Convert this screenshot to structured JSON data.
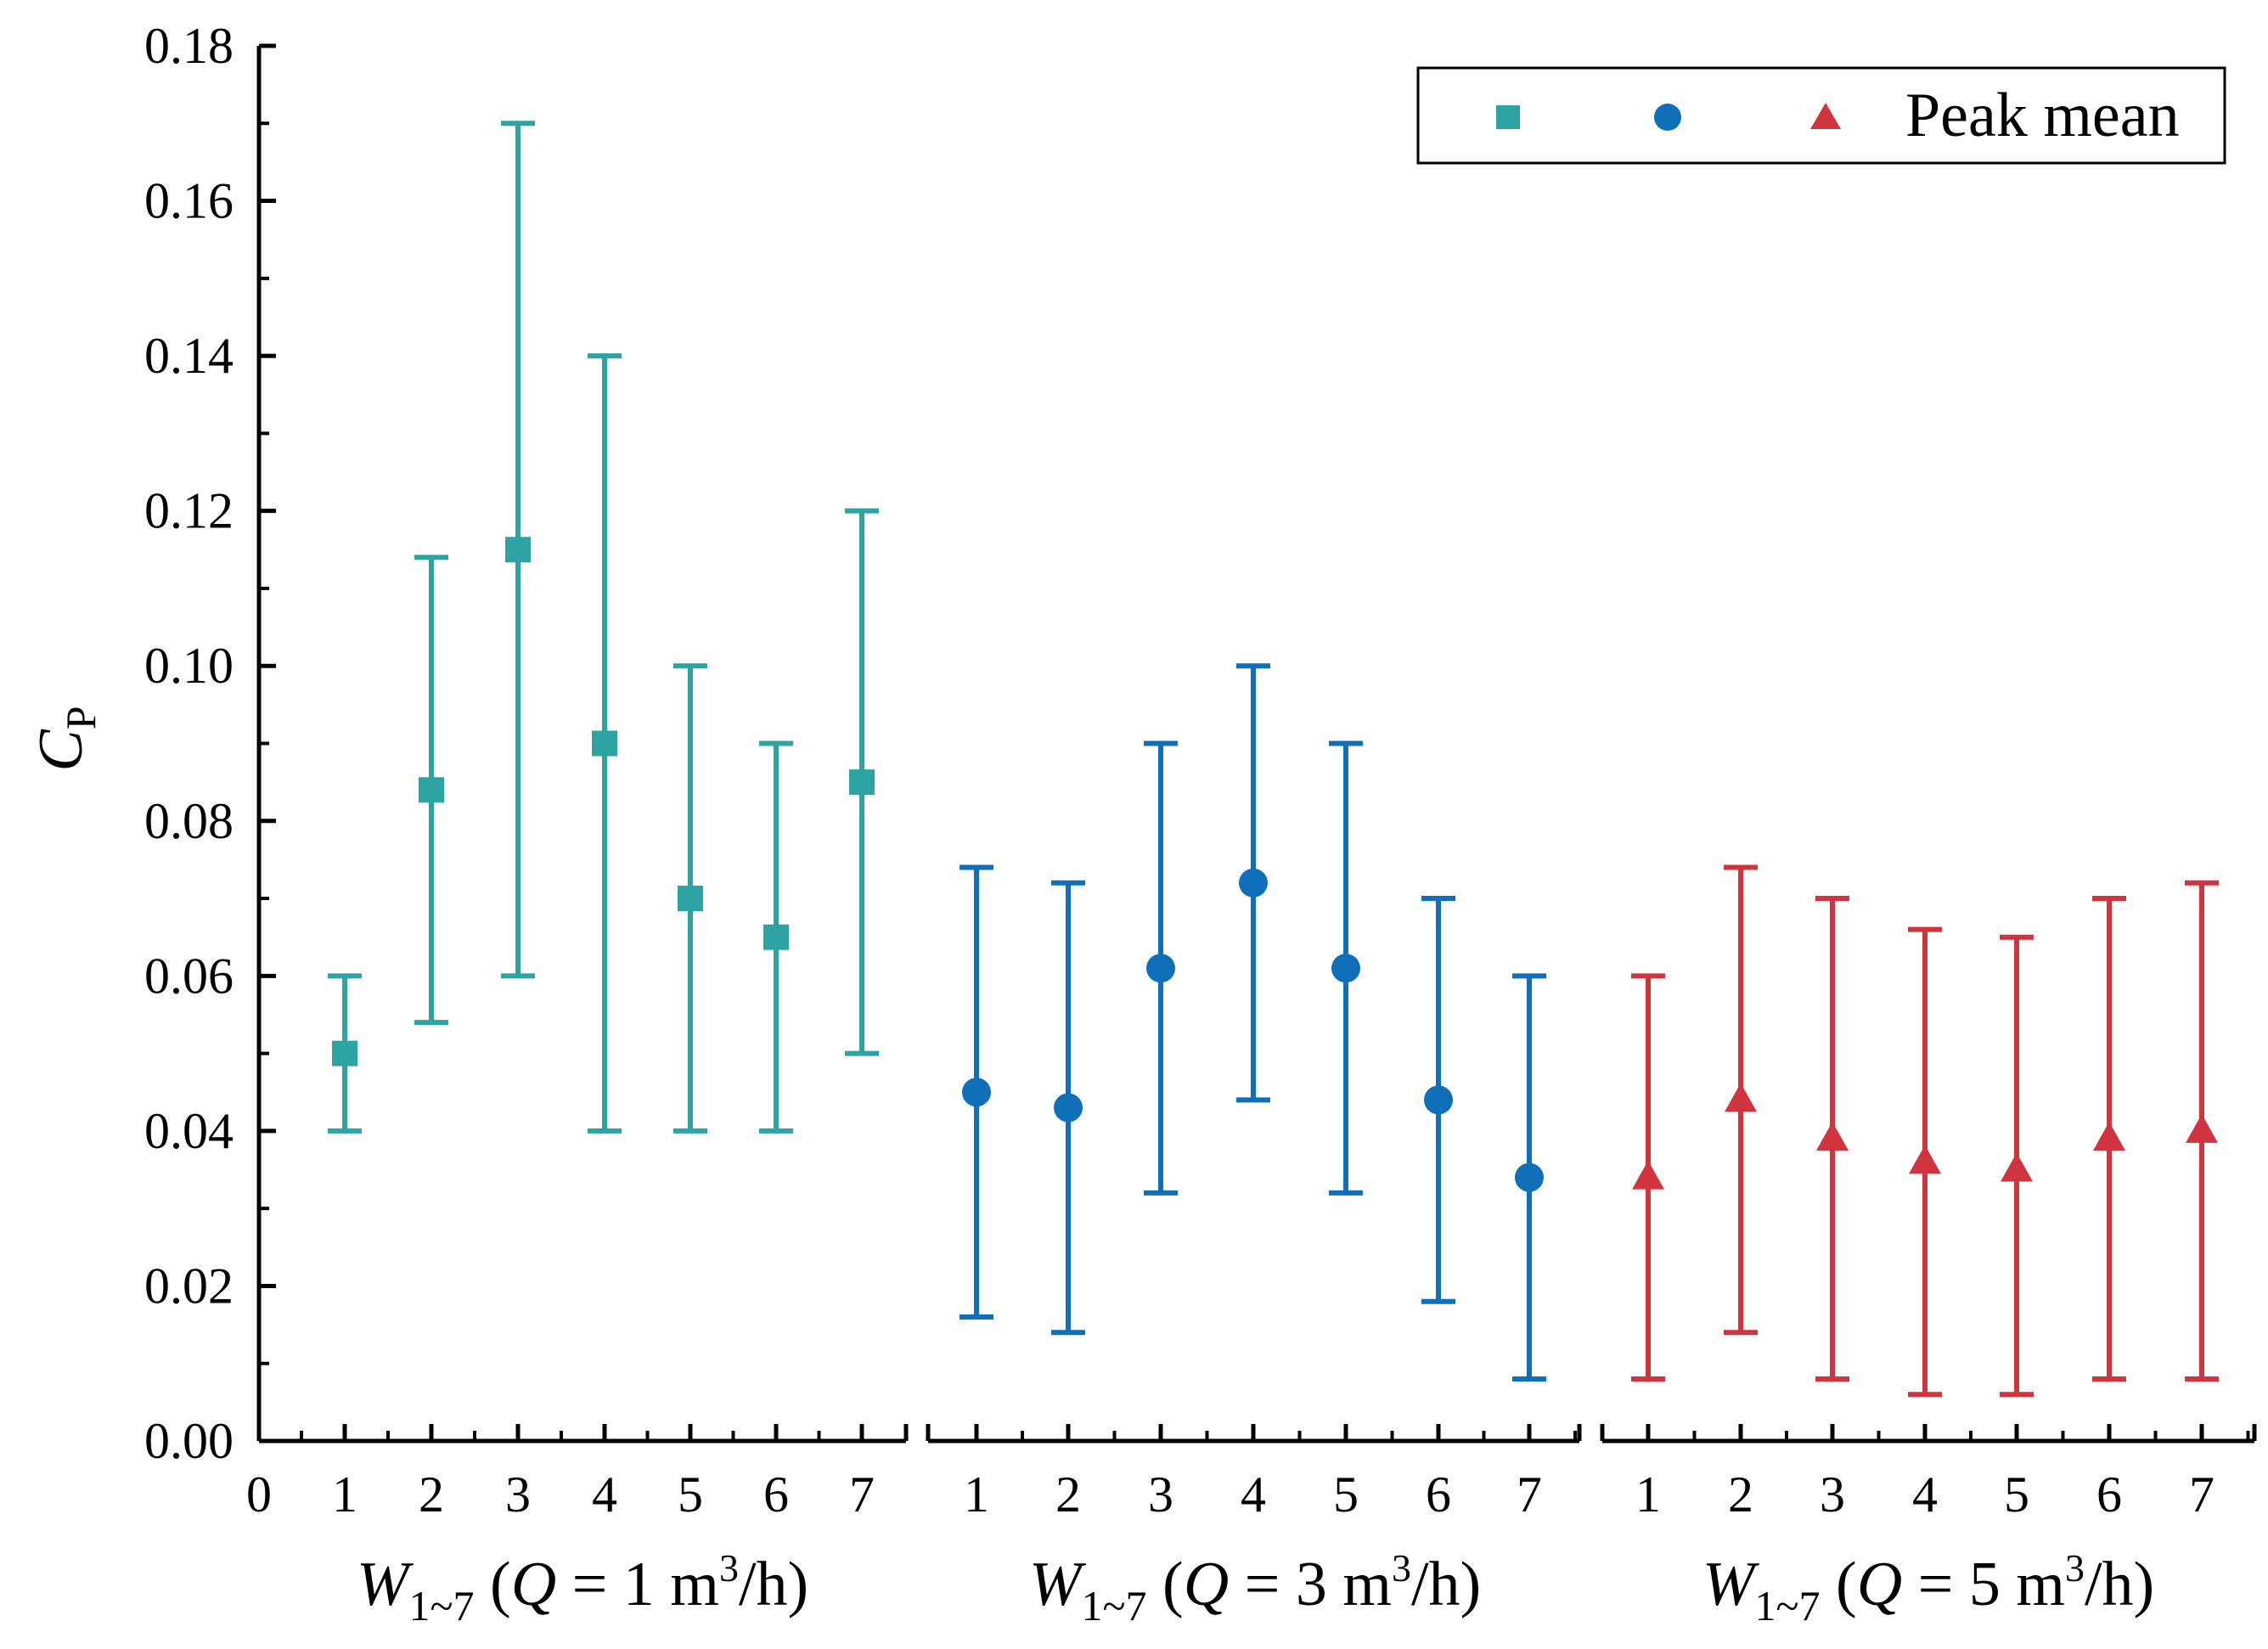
{
  "chart_data": {
    "type": "scatter",
    "title": "",
    "ylabel": {
      "main": "C",
      "sub": "P"
    },
    "ylim": [
      0,
      0.18
    ],
    "yticks": [
      "0.00",
      "0.02",
      "0.04",
      "0.06",
      "0.08",
      "0.10",
      "0.12",
      "0.14",
      "0.16",
      "0.18"
    ],
    "x_origin_label": "0",
    "legend": {
      "position": "top-right",
      "label": "Peak mean"
    },
    "groups": [
      {
        "name": "Q = 1 m3/h",
        "xlabel": {
          "w": "W",
          "sub": "1~7",
          "open": " (",
          "q": "Q",
          "eq": " = 1 m",
          "sup": "3",
          "close": "/h)"
        },
        "color": "#2ea3a3",
        "marker": "square",
        "categories": [
          "1",
          "2",
          "3",
          "4",
          "5",
          "6",
          "7"
        ],
        "mean": [
          0.05,
          0.084,
          0.115,
          0.09,
          0.07,
          0.065,
          0.085
        ],
        "min": [
          0.04,
          0.054,
          0.06,
          0.04,
          0.04,
          0.04,
          0.05
        ],
        "max": [
          0.06,
          0.114,
          0.17,
          0.14,
          0.1,
          0.09,
          0.12
        ]
      },
      {
        "name": "Q = 3 m3/h",
        "xlabel": {
          "w": "W",
          "sub": "1~7",
          "open": " (",
          "q": "Q",
          "eq": " = 3 m",
          "sup": "3",
          "close": "/h)"
        },
        "color": "#0f6fb8",
        "marker": "circle",
        "categories": [
          "1",
          "2",
          "3",
          "4",
          "5",
          "6",
          "7"
        ],
        "mean": [
          0.045,
          0.043,
          0.061,
          0.072,
          0.061,
          0.044,
          0.034
        ],
        "min": [
          0.016,
          0.014,
          0.032,
          0.044,
          0.032,
          0.018,
          0.008
        ],
        "max": [
          0.074,
          0.072,
          0.09,
          0.1,
          0.09,
          0.07,
          0.06
        ]
      },
      {
        "name": "Q = 5 m3/h",
        "xlabel": {
          "w": "W",
          "sub": "1~7",
          "open": " (",
          "q": "Q",
          "eq": " = 5 m",
          "sup": "3",
          "close": "/h)"
        },
        "color": "#d0343f",
        "marker": "triangle",
        "categories": [
          "1",
          "2",
          "3",
          "4",
          "5",
          "6",
          "7"
        ],
        "mean": [
          0.034,
          0.044,
          0.039,
          0.036,
          0.035,
          0.039,
          0.04
        ],
        "min": [
          0.008,
          0.014,
          0.008,
          0.006,
          0.006,
          0.008,
          0.008
        ],
        "max": [
          0.06,
          0.074,
          0.07,
          0.066,
          0.065,
          0.07,
          0.072
        ]
      }
    ]
  }
}
